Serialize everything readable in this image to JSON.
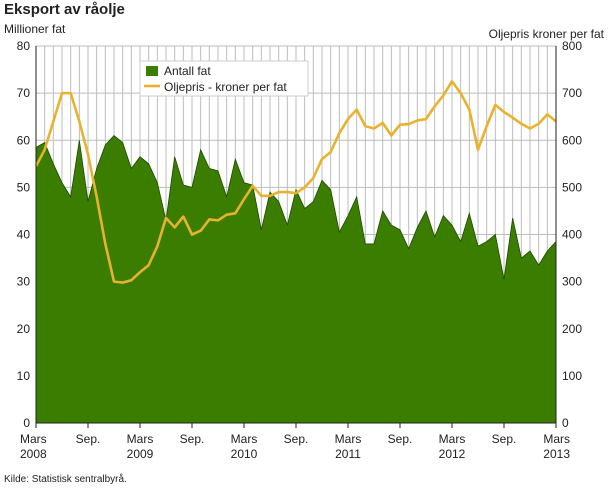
{
  "title": "Eksport av råolje",
  "source": "Kilde: Statistisk sentralbyrå.",
  "colors": {
    "area": "#3a7d00",
    "line": "#e8b22d",
    "grid": "#bdbdbd"
  },
  "chart_data": {
    "type": "area",
    "ylabel": "Millioner fat",
    "ylabel_right": "Oljepris kroner per fat",
    "ylim": [
      0,
      80
    ],
    "ylim_right": [
      0,
      800
    ],
    "yticks": [
      "0",
      "10",
      "20",
      "30",
      "40",
      "50",
      "60",
      "70",
      "80"
    ],
    "yticks_right": [
      "0",
      "100",
      "200",
      "300",
      "400",
      "500",
      "600",
      "700",
      "800"
    ],
    "x_labels": [
      {
        "i": 0,
        "line1": "Mars",
        "line2": "2008"
      },
      {
        "i": 6,
        "line1": "Sep.",
        "line2": ""
      },
      {
        "i": 12,
        "line1": "Mars",
        "line2": "2009"
      },
      {
        "i": 18,
        "line1": "Sep.",
        "line2": ""
      },
      {
        "i": 24,
        "line1": "Mars",
        "line2": "2010"
      },
      {
        "i": 30,
        "line1": "Sep.",
        "line2": ""
      },
      {
        "i": 36,
        "line1": "Mars",
        "line2": "2011"
      },
      {
        "i": 42,
        "line1": "Sep.",
        "line2": ""
      },
      {
        "i": 48,
        "line1": "Mars",
        "line2": "2012"
      },
      {
        "i": 54,
        "line1": "Sep.",
        "line2": ""
      },
      {
        "i": 60,
        "line1": "Mars",
        "line2": "2013"
      }
    ],
    "legend_position": "top-center",
    "grid": true,
    "series": [
      {
        "name": "Antall fat",
        "type": "area",
        "axis": "left",
        "values": [
          58.5,
          59.5,
          55,
          51,
          48,
          60,
          47,
          54,
          59,
          61,
          59.5,
          54,
          56.5,
          55,
          51,
          43,
          56.5,
          50.5,
          50,
          58,
          54,
          53.5,
          48,
          56,
          51,
          50.5,
          41,
          49,
          47,
          42,
          49.5,
          45.5,
          47,
          51.5,
          49.5,
          40.5,
          44,
          48,
          38,
          38,
          45,
          42,
          41,
          37,
          41.5,
          45,
          39.5,
          44,
          42,
          38.5,
          44.5,
          37.5,
          38.5,
          40,
          30.5,
          43.5,
          35,
          36.5,
          33.5,
          36.5,
          38.5
        ]
      },
      {
        "name": "Oljepris - kroner per fat",
        "type": "line",
        "axis": "right",
        "values": [
          545,
          580,
          640,
          700,
          700,
          640,
          570,
          480,
          380,
          300,
          298,
          303,
          320,
          335,
          375,
          435,
          415,
          438,
          400,
          408,
          432,
          430,
          442,
          445,
          475,
          503,
          482,
          482,
          490,
          490,
          488,
          500,
          520,
          560,
          575,
          615,
          645,
          665,
          630,
          625,
          637,
          610,
          633,
          634,
          642,
          645,
          672,
          695,
          725,
          700,
          665,
          580,
          630,
          675,
          660,
          648,
          635,
          625,
          635,
          655,
          640
        ]
      }
    ]
  }
}
